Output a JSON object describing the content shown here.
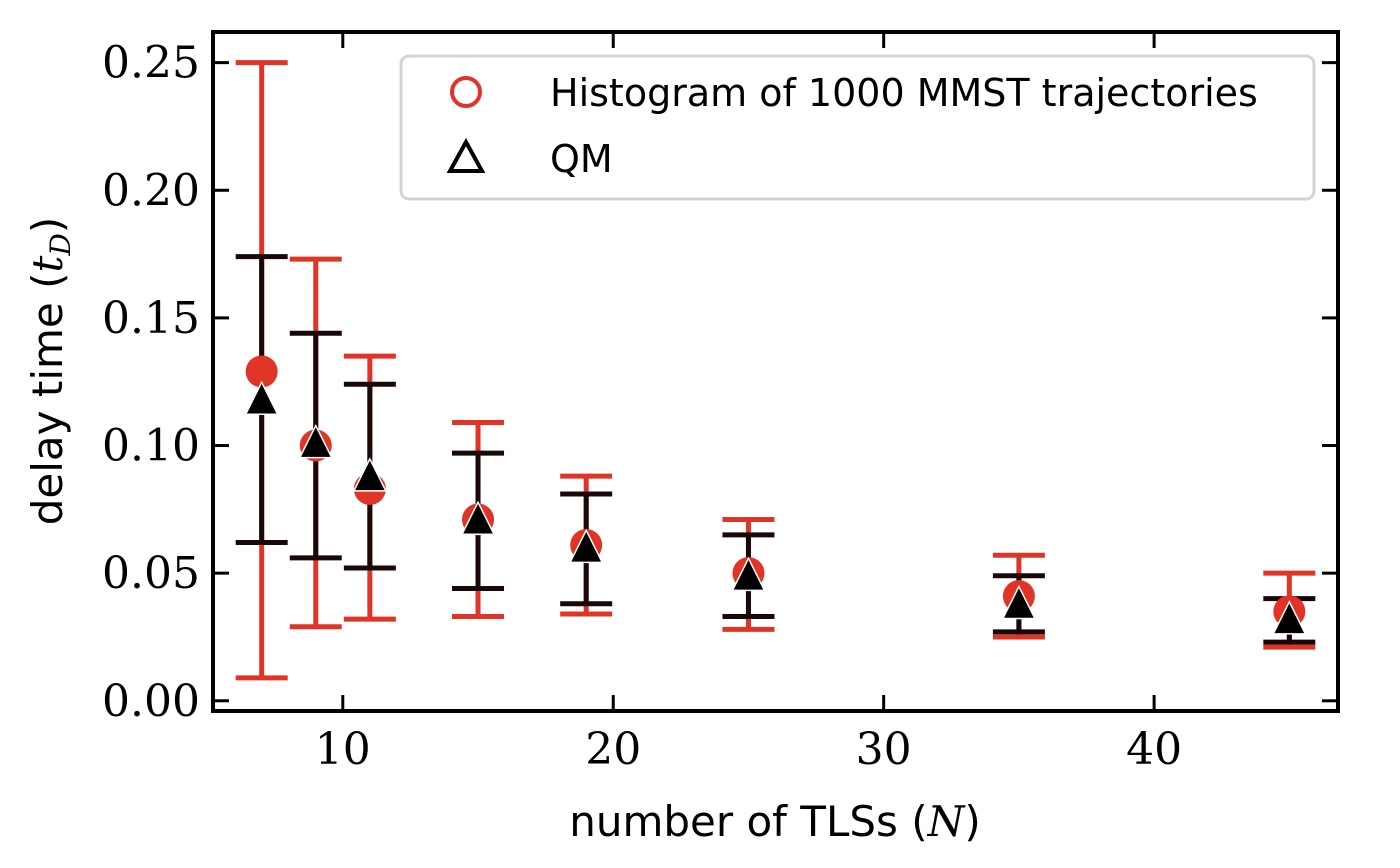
{
  "chart_data": {
    "type": "scatter",
    "xlabel": "number of TLSs",
    "xlabel_var": "N",
    "ylabel": "delay time",
    "ylabel_var": "t",
    "ylabel_sub": "D",
    "xlim": [
      5.2,
      46.8
    ],
    "ylim": [
      -0.004,
      0.262
    ],
    "xticks": [
      10,
      20,
      30,
      40
    ],
    "xtick_labels": [
      "10",
      "20",
      "30",
      "40"
    ],
    "yticks": [
      0.0,
      0.05,
      0.1,
      0.15,
      0.2,
      0.25
    ],
    "ytick_labels": [
      "0.00",
      "0.05",
      "0.10",
      "0.15",
      "0.20",
      "0.25"
    ],
    "grid": false,
    "legend_position": "top-right",
    "series": [
      {
        "name": "Histogram of 1000 MMST trajectories",
        "marker": "circle",
        "color": "#e03427",
        "x": [
          7,
          9,
          11,
          15,
          19,
          25,
          35,
          45
        ],
        "y": [
          0.129,
          0.1,
          0.083,
          0.071,
          0.061,
          0.05,
          0.041,
          0.035
        ],
        "err_low": [
          0.009,
          0.029,
          0.032,
          0.033,
          0.034,
          0.028,
          0.025,
          0.021
        ],
        "err_high": [
          0.25,
          0.173,
          0.135,
          0.109,
          0.088,
          0.071,
          0.057,
          0.05
        ]
      },
      {
        "name": "QM",
        "marker": "triangle",
        "color": "#000000",
        "errcolor": "#1a0808",
        "x": [
          7,
          9,
          11,
          15,
          19,
          25,
          35,
          45
        ],
        "y": [
          0.117,
          0.1,
          0.087,
          0.07,
          0.059,
          0.048,
          0.037,
          0.031
        ],
        "err_low": [
          0.062,
          0.056,
          0.052,
          0.044,
          0.038,
          0.033,
          0.027,
          0.023
        ],
        "err_high": [
          0.174,
          0.144,
          0.124,
          0.097,
          0.081,
          0.065,
          0.049,
          0.04
        ]
      }
    ]
  }
}
